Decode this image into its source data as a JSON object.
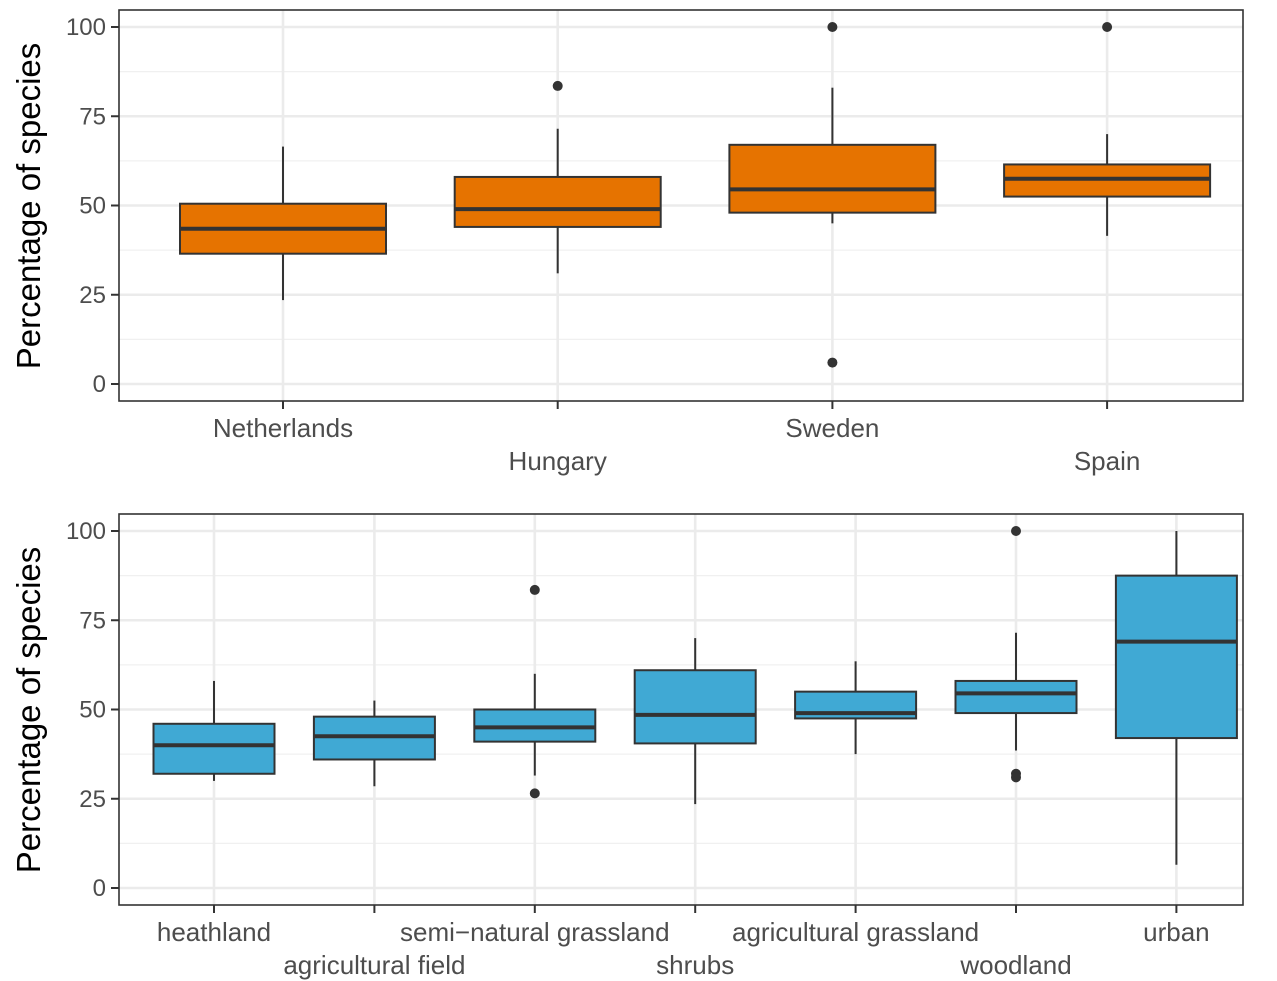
{
  "chart_data": [
    {
      "type": "boxplot",
      "ylabel": "Percentage of species",
      "ylim": [
        -5,
        105
      ],
      "yticks": [
        0,
        25,
        50,
        75,
        100
      ],
      "grid": true,
      "fill_color": "#E67300",
      "categories": [
        "Netherlands",
        "Hungary",
        "Sweden",
        "Spain"
      ],
      "boxes": [
        {
          "category": "Netherlands",
          "whisker_low": 23.5,
          "q1": 36.5,
          "median": 43.5,
          "q3": 50.5,
          "whisker_high": 66.5,
          "outliers": []
        },
        {
          "category": "Hungary",
          "whisker_low": 31,
          "q1": 44,
          "median": 49,
          "q3": 58,
          "whisker_high": 71.5,
          "outliers": [
            83.5
          ]
        },
        {
          "category": "Sweden",
          "whisker_low": 45,
          "q1": 48,
          "median": 54.5,
          "q3": 67,
          "whisker_high": 83,
          "outliers": [
            100,
            6
          ]
        },
        {
          "category": "Spain",
          "whisker_low": 41.5,
          "q1": 52.5,
          "median": 57.5,
          "q3": 61.5,
          "whisker_high": 70,
          "outliers": [
            100
          ]
        }
      ]
    },
    {
      "type": "boxplot",
      "ylabel": "Percentage of species",
      "ylim": [
        -5,
        105
      ],
      "yticks": [
        0,
        25,
        50,
        75,
        100
      ],
      "grid": true,
      "fill_color": "#40A9D4",
      "categories": [
        "heathland",
        "agricultural field",
        "semi−natural grassland",
        "shrubs",
        "agricultural grassland",
        "woodland",
        "urban"
      ],
      "boxes": [
        {
          "category": "heathland",
          "whisker_low": 30,
          "q1": 32,
          "median": 40,
          "q3": 46,
          "whisker_high": 58,
          "outliers": []
        },
        {
          "category": "agricultural field",
          "whisker_low": 28.5,
          "q1": 36,
          "median": 42.5,
          "q3": 48,
          "whisker_high": 52.5,
          "outliers": []
        },
        {
          "category": "semi−natural grassland",
          "whisker_low": 31.5,
          "q1": 41,
          "median": 45,
          "q3": 50,
          "whisker_high": 60,
          "outliers": [
            83.5,
            26.5
          ]
        },
        {
          "category": "shrubs",
          "whisker_low": 23.5,
          "q1": 40.5,
          "median": 48.5,
          "q3": 61,
          "whisker_high": 70,
          "outliers": []
        },
        {
          "category": "agricultural grassland",
          "whisker_low": 37.5,
          "q1": 47.5,
          "median": 49,
          "q3": 55,
          "whisker_high": 63.5,
          "outliers": []
        },
        {
          "category": "woodland",
          "whisker_low": 38.5,
          "q1": 49,
          "median": 54.5,
          "q3": 58,
          "whisker_high": 71.5,
          "outliers": [
            100,
            32,
            31
          ]
        },
        {
          "category": "urban",
          "whisker_low": 6.5,
          "q1": 42,
          "median": 69,
          "q3": 87.5,
          "whisker_high": 100,
          "outliers": []
        }
      ]
    }
  ]
}
